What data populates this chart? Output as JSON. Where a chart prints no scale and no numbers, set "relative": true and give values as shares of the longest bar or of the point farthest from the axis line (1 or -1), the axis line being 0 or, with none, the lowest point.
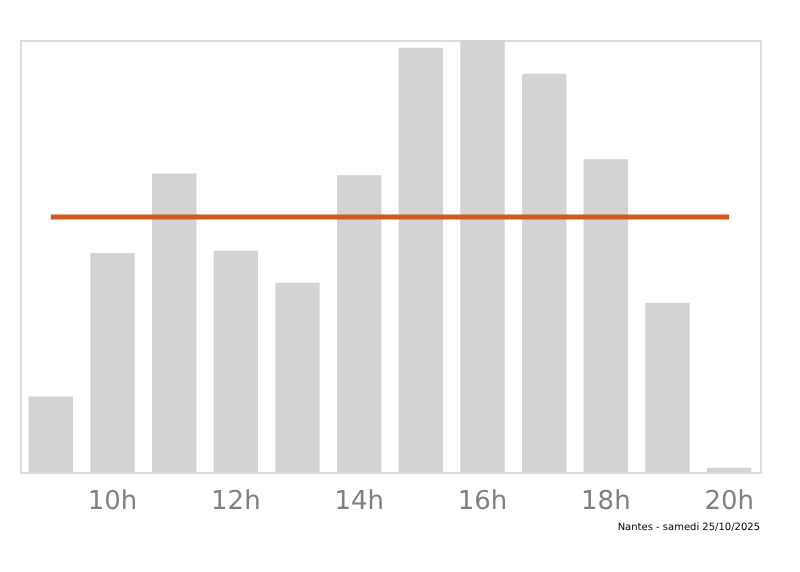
{
  "chart_data": {
    "type": "bar",
    "relative": true,
    "categories": [
      null,
      "10h",
      null,
      "12h",
      null,
      "14h",
      null,
      "16h",
      null,
      "18h",
      null,
      "20h"
    ],
    "series": [
      {
        "color": "#d3d3d3",
        "values": [
          0.175,
          0.507,
          0.691,
          0.512,
          0.438,
          0.687,
          0.982,
          1,
          0.922,
          0.724,
          0.392,
          0.01
        ]
      }
    ],
    "ref_lines": [
      {
        "axis": "y",
        "value": 0.59,
        "color": "#d4571c"
      }
    ],
    "annotations": [
      "Nantes - samedi 25/10/2025"
    ],
    "grid": false
  }
}
